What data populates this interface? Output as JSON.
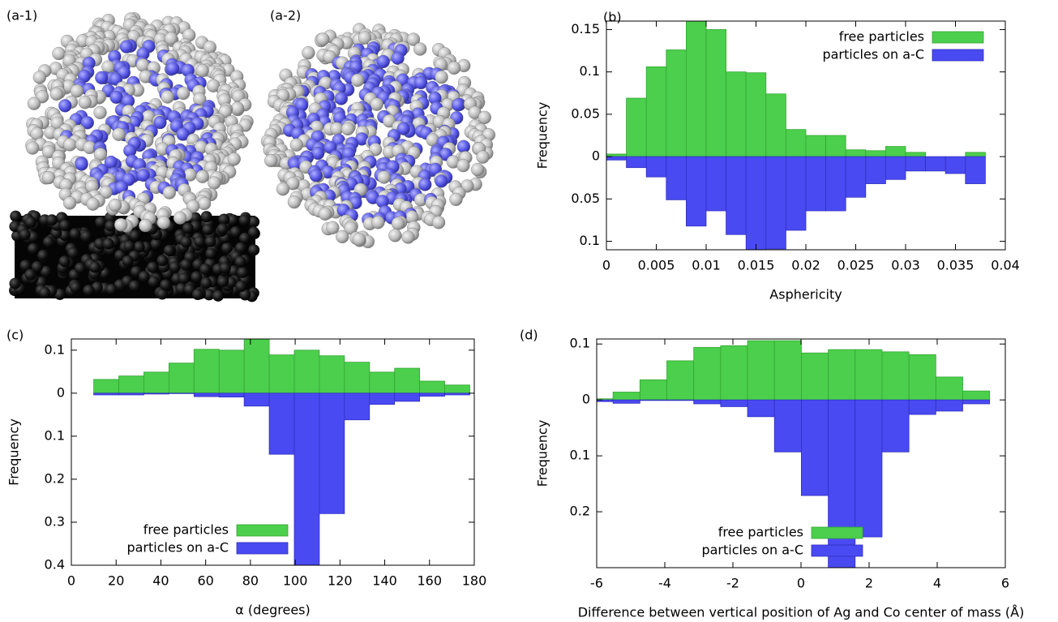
{
  "figure": {
    "images": [
      {
        "label": "(a-1)"
      },
      {
        "label": "(a-2)"
      }
    ]
  },
  "chart_data": [
    {
      "type": "histogram",
      "panel_label": "(b)",
      "xlabel": "Asphericity",
      "ylabel": "Frequency",
      "bins": [
        0,
        0.002,
        0.004,
        0.006,
        0.008,
        0.01,
        0.012,
        0.014,
        0.016,
        0.018,
        0.02,
        0.022,
        0.024,
        0.026,
        0.028,
        0.03,
        0.032,
        0.034,
        0.036,
        0.038
      ],
      "series": [
        {
          "name": "free particles",
          "color": "#4ccf4c",
          "side": "up",
          "values": [
            0.003,
            0.069,
            0.106,
            0.126,
            0.16,
            0.15,
            0.1,
            0.099,
            0.074,
            0.032,
            0.025,
            0.025,
            0.008,
            0.007,
            0.012,
            0.005,
            0,
            0,
            0.005
          ]
        },
        {
          "name": "particles on a-C",
          "color": "#4a4af2",
          "side": "down",
          "values": [
            0.004,
            0.013,
            0.024,
            0.051,
            0.082,
            0.064,
            0.092,
            0.11,
            0.109,
            0.087,
            0.064,
            0.064,
            0.048,
            0.032,
            0.027,
            0.017,
            0.017,
            0.02,
            0.032
          ]
        }
      ],
      "xlim": [
        0,
        0.04
      ],
      "xticks": [
        0,
        0.005,
        0.01,
        0.015,
        0.02,
        0.025,
        0.03,
        0.035,
        0.04
      ],
      "ylim": [
        -0.11,
        0.16
      ],
      "yticks": [
        0.15,
        0.1,
        0.05,
        0,
        {
          "value": -0.05,
          "label": "0.05"
        },
        {
          "value": -0.1,
          "label": "0.1"
        }
      ],
      "legend": "upper right"
    },
    {
      "type": "histogram",
      "panel_label": "(c)",
      "xlabel": "α (degrees)",
      "ylabel": "Frequency",
      "bins": [
        10,
        21.2,
        32.4,
        43.6,
        54.8,
        66,
        77.2,
        88.4,
        99.6,
        110.8,
        122,
        133.2,
        144.4,
        155.6,
        166.8,
        178
      ],
      "series": [
        {
          "name": "free particles",
          "color": "#4ccf4c",
          "side": "up",
          "values": [
            0.032,
            0.04,
            0.049,
            0.07,
            0.102,
            0.1,
            0.126,
            0.089,
            0.1,
            0.087,
            0.072,
            0.049,
            0.058,
            0.028,
            0.019
          ]
        },
        {
          "name": "particles on a-C",
          "color": "#4a4af2",
          "side": "down",
          "values": [
            0.004,
            0.004,
            0.002,
            0.001,
            0.008,
            0.009,
            0.03,
            0.142,
            0.4,
            0.28,
            0.062,
            0.026,
            0.019,
            0.007,
            0.004
          ]
        }
      ],
      "xlim": [
        0,
        180
      ],
      "xticks": [
        0,
        20,
        40,
        60,
        80,
        100,
        120,
        140,
        160,
        180
      ],
      "ylim": [
        -0.4,
        0.126
      ],
      "yticks": [
        0.1,
        0,
        {
          "value": -0.1,
          "label": "0.1"
        },
        {
          "value": -0.2,
          "label": "0.2"
        },
        {
          "value": -0.3,
          "label": "0.3"
        },
        {
          "value": -0.4,
          "label": "0.4"
        }
      ],
      "legend": "lower left"
    },
    {
      "type": "histogram",
      "panel_label": "(d)",
      "xlabel": "Difference between vertical position of Ag and Co center of mass (Å)",
      "ylabel": "Frequency",
      "bins": [
        -6.31,
        -5.52,
        -4.73,
        -3.94,
        -3.15,
        -2.36,
        -1.57,
        -0.78,
        0.01,
        0.8,
        1.59,
        2.38,
        3.17,
        3.96,
        4.75,
        5.54
      ],
      "series": [
        {
          "name": "free particles",
          "color": "#4ccf4c",
          "side": "up",
          "values": [
            0.002,
            0.014,
            0.036,
            0.07,
            0.094,
            0.097,
            0.106,
            0.106,
            0.084,
            0.09,
            0.09,
            0.086,
            0.081,
            0.041,
            0.016
          ]
        },
        {
          "name": "particles on a-C",
          "color": "#4a4af2",
          "side": "down",
          "values": [
            0.003,
            0.006,
            0.001,
            0.001,
            0.007,
            0.012,
            0.03,
            0.093,
            0.171,
            0.3,
            0.245,
            0.093,
            0.026,
            0.02,
            0.007
          ]
        }
      ],
      "xlim": [
        -6,
        6
      ],
      "xticks": [
        -6,
        -4,
        -2,
        0,
        2,
        4,
        6
      ],
      "ylim": [
        -0.3,
        0.109
      ],
      "yticks": [
        0.1,
        0,
        {
          "value": -0.1,
          "label": "0.1"
        },
        {
          "value": -0.2,
          "label": "0.2"
        }
      ],
      "legend": "lower center"
    }
  ]
}
